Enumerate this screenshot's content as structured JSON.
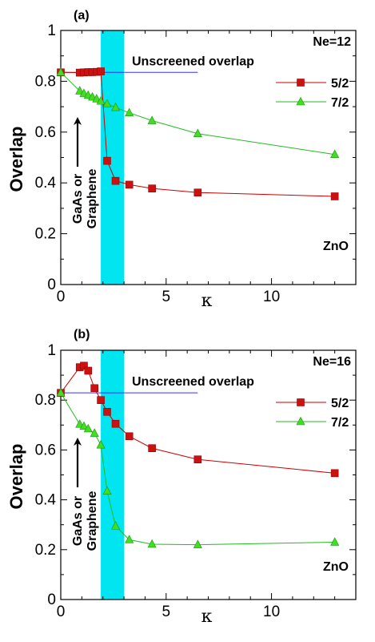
{
  "colors": {
    "series_52": "#cc0000",
    "series_52_fill": "#cc1111",
    "series_72": "#22bb22",
    "series_72_fill": "#44dd22",
    "band": "#00e5f0",
    "unscreened_line": "#3333ff"
  },
  "chart_data": [
    {
      "type": "line",
      "panel_label": "(a)",
      "ne_label": "Ne=12",
      "xlabel": "κ",
      "ylabel": "Overlap",
      "xlim": [
        0,
        14
      ],
      "ylim": [
        0,
        1
      ],
      "xticks": [
        0,
        5,
        10
      ],
      "yticks": [
        0,
        0.2,
        0.4,
        0.6,
        0.8,
        1
      ],
      "ytick_labels": [
        "0",
        "0.2",
        "0.4",
        "0.6",
        "0.8",
        "1"
      ],
      "highlight_band": [
        1.9,
        3.0
      ],
      "reference_line": {
        "label": "Unscreened overlap",
        "y": 0.835,
        "x": [
          0,
          6.5
        ]
      },
      "annotations": [
        {
          "text_lines": [
            "GaAs or",
            "Graphene"
          ]
        },
        {
          "text_lines": [
            "ZnO"
          ]
        }
      ],
      "series": [
        {
          "name": "5/2",
          "marker": "square",
          "x": [
            0,
            0.9,
            1.1,
            1.3,
            1.5,
            1.7,
            1.9,
            2.2,
            2.6,
            3.25,
            4.33,
            6.5,
            13
          ],
          "y": [
            0.835,
            0.834,
            0.835,
            0.836,
            0.836,
            0.837,
            0.839,
            0.487,
            0.408,
            0.393,
            0.378,
            0.362,
            0.347
          ]
        },
        {
          "name": "7/2",
          "marker": "triangle",
          "x": [
            0,
            0.9,
            1.1,
            1.3,
            1.5,
            1.7,
            1.9,
            2.2,
            2.6,
            3.25,
            4.33,
            6.5,
            13
          ],
          "y": [
            0.835,
            0.762,
            0.752,
            0.745,
            0.738,
            0.731,
            0.722,
            0.711,
            0.697,
            0.676,
            0.645,
            0.594,
            0.512
          ]
        }
      ]
    },
    {
      "type": "line",
      "panel_label": "(b)",
      "ne_label": "Ne=16",
      "xlabel": "κ",
      "ylabel": "Overlap",
      "xlim": [
        0,
        14
      ],
      "ylim": [
        0,
        1
      ],
      "xticks": [
        0,
        5,
        10
      ],
      "yticks": [
        0,
        0.2,
        0.4,
        0.6,
        0.8,
        1
      ],
      "ytick_labels": [
        "0",
        "0.2",
        "0.4",
        "0.6",
        "0.8",
        "1"
      ],
      "highlight_band": [
        1.9,
        3.0
      ],
      "reference_line": {
        "label": "Unscreened overlap",
        "y": 0.829,
        "x": [
          0,
          6.5
        ]
      },
      "annotations": [
        {
          "text_lines": [
            "GaAs or",
            "Graphene"
          ]
        },
        {
          "text_lines": [
            "ZnO"
          ]
        }
      ],
      "series": [
        {
          "name": "5/2",
          "marker": "square",
          "x": [
            0,
            0.9,
            1.1,
            1.3,
            1.6,
            1.9,
            2.2,
            2.6,
            3.25,
            4.33,
            6.5,
            13
          ],
          "y": [
            0.829,
            0.932,
            0.938,
            0.918,
            0.848,
            0.8,
            0.753,
            0.705,
            0.655,
            0.607,
            0.562,
            0.507
          ]
        },
        {
          "name": "7/2",
          "marker": "triangle",
          "x": [
            0,
            0.9,
            1.1,
            1.3,
            1.6,
            1.9,
            2.2,
            2.6,
            3.25,
            4.33,
            6.5,
            13
          ],
          "y": [
            0.829,
            0.703,
            0.695,
            0.685,
            0.667,
            0.62,
            0.435,
            0.295,
            0.24,
            0.222,
            0.22,
            0.23
          ]
        }
      ]
    }
  ]
}
